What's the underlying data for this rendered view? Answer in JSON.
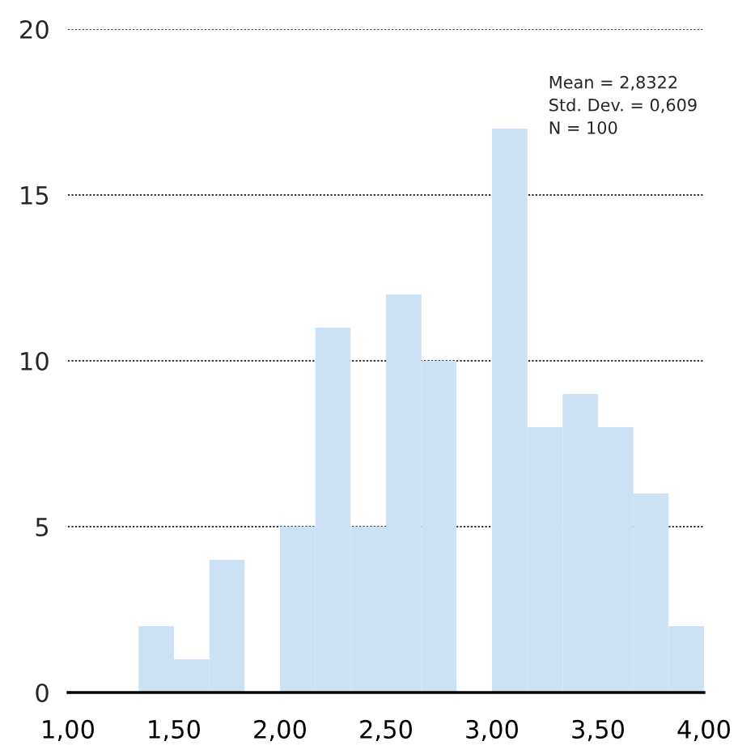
{
  "chart_data": {
    "type": "histogram",
    "bins": [
      1.333,
      1.5,
      1.667,
      1.833,
      2,
      2.167,
      2.333,
      2.5,
      2.667,
      2.833,
      3,
      3.167,
      3.333,
      3.5,
      3.667,
      3.833,
      4
    ],
    "values": [
      2,
      1,
      4,
      0,
      5,
      11,
      5,
      12,
      10,
      0,
      17,
      8,
      9,
      8,
      6,
      2
    ],
    "color": "#cce2f4",
    "xlim": [
      1,
      4
    ],
    "xticks": [
      {
        "value": 1,
        "label": "1,00"
      },
      {
        "value": 1.5,
        "label": "1,50"
      },
      {
        "value": 2,
        "label": "2,00"
      },
      {
        "value": 2.5,
        "label": "2,50"
      },
      {
        "value": 3,
        "label": "3,00"
      },
      {
        "value": 3.5,
        "label": "3,50"
      },
      {
        "value": 4,
        "label": "4,00"
      }
    ],
    "ylim": [
      0,
      20
    ],
    "yticks": [
      0,
      5,
      10,
      15,
      20
    ],
    "grid": "y",
    "annotations": [
      "Mean = 2,8322\nStd. Dev. = 0,609\nN = 100"
    ]
  }
}
